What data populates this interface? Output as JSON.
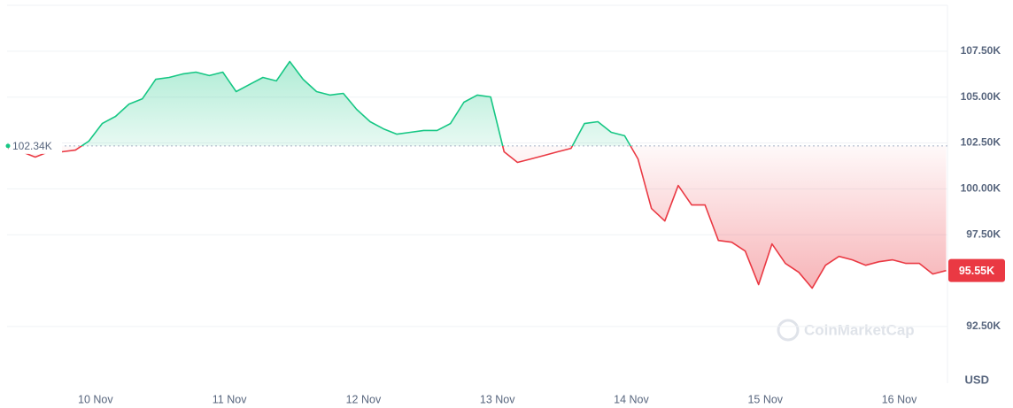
{
  "chart_data": {
    "type": "price-line",
    "watermark": "CoinMarketCap",
    "unit_label": "USD",
    "colors": {
      "up": "#16c784",
      "down": "#ea3943"
    },
    "reference": {
      "value": 102340,
      "label": "102.34K"
    },
    "current_price": {
      "value": 95550,
      "label": "95.55K"
    },
    "x": [
      9.35,
      9.45,
      9.55,
      9.65,
      9.75,
      9.85,
      9.95,
      10.05,
      10.15,
      10.25,
      10.35,
      10.45,
      10.55,
      10.65,
      10.75,
      10.85,
      10.95,
      11.05,
      11.15,
      11.25,
      11.35,
      11.45,
      11.55,
      11.65,
      11.75,
      11.85,
      11.95,
      12.05,
      12.15,
      12.25,
      12.35,
      12.45,
      12.55,
      12.65,
      12.75,
      12.85,
      12.95,
      13.05,
      13.15,
      13.25,
      13.35,
      13.45,
      13.55,
      13.65,
      13.75,
      13.85,
      13.95,
      14.05,
      14.15,
      14.25,
      14.35,
      14.45,
      14.55,
      14.65,
      14.75,
      14.85,
      14.95,
      15.05,
      15.15,
      15.25,
      15.35,
      15.45,
      15.55,
      15.65,
      15.75,
      15.85,
      15.95,
      16.05,
      16.15,
      16.25,
      16.35
    ],
    "values": [
      102210,
      102020,
      101730,
      102020,
      102020,
      102110,
      102600,
      103560,
      103950,
      104620,
      104910,
      105970,
      106070,
      106260,
      106360,
      106170,
      106360,
      105300,
      105690,
      106070,
      105880,
      106940,
      105970,
      105300,
      105110,
      105200,
      104330,
      103660,
      103270,
      102980,
      103080,
      103180,
      103180,
      103560,
      104720,
      105110,
      105010,
      102020,
      101440,
      101630,
      101820,
      102020,
      102210,
      103560,
      103660,
      103080,
      102890,
      101630,
      98930,
      98250,
      100180,
      99120,
      99120,
      97190,
      97090,
      96610,
      94780,
      97000,
      95940,
      95450,
      94590,
      95840,
      96320,
      96130,
      95840,
      96030,
      96130,
      95940,
      95940,
      95360,
      95550
    ],
    "xlim": [
      9.34,
      16.36
    ],
    "xticks": [
      {
        "value": 10,
        "label": "10 Nov"
      },
      {
        "value": 11,
        "label": "11 Nov"
      },
      {
        "value": 12,
        "label": "12 Nov"
      },
      {
        "value": 13,
        "label": "13 Nov"
      },
      {
        "value": 14,
        "label": "14 Nov"
      },
      {
        "value": 15,
        "label": "15 Nov"
      },
      {
        "value": 16,
        "label": "16 Nov"
      }
    ],
    "ylim": [
      89410,
      110000
    ],
    "yticks": [
      {
        "value": 92500,
        "label": "92.50K"
      },
      {
        "value": 97500,
        "label": "97.50K"
      },
      {
        "value": 100000,
        "label": "100.00K"
      },
      {
        "value": 102500,
        "label": "102.50K"
      },
      {
        "value": 105000,
        "label": "105.00K"
      },
      {
        "value": 107500,
        "label": "107.50K"
      }
    ],
    "grid": true
  }
}
